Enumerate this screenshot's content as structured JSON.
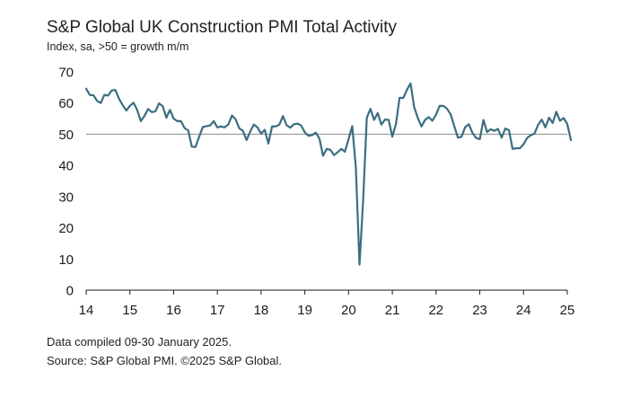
{
  "title": "S&P Global UK Construction PMI Total Activity",
  "subtitle": "Index, sa, >50 = growth m/m",
  "footer": {
    "note": "Data compiled 09-30 January 2025.",
    "source": "Source: S&P Global PMI. ©2025 S&P Global."
  },
  "colors": {
    "line": "#3a6e80",
    "reference": "#8c8c8c",
    "axis": "#1a1a1a"
  },
  "chart_data": {
    "type": "line",
    "title": "S&P Global UK Construction PMI Total Activity",
    "ylabel": "Index, sa, >50 = growth m/m",
    "xlabel": "",
    "ylim": [
      0,
      70
    ],
    "xlim": [
      2014,
      2025.1
    ],
    "yticks": [
      0,
      10,
      20,
      30,
      40,
      50,
      60,
      70
    ],
    "xticks": [
      {
        "value": 2014,
        "label": "14"
      },
      {
        "value": 2015,
        "label": "15"
      },
      {
        "value": 2016,
        "label": "16"
      },
      {
        "value": 2017,
        "label": "17"
      },
      {
        "value": 2018,
        "label": "18"
      },
      {
        "value": 2019,
        "label": "19"
      },
      {
        "value": 2020,
        "label": "20"
      },
      {
        "value": 2021,
        "label": "21"
      },
      {
        "value": 2022,
        "label": "22"
      },
      {
        "value": 2023,
        "label": "23"
      },
      {
        "value": 2024,
        "label": "24"
      },
      {
        "value": 2025,
        "label": "25"
      }
    ],
    "reference_line": 50,
    "grid": false,
    "series": [
      {
        "name": "Total Activity",
        "start": 2014.0,
        "step": 0.0833333,
        "values": [
          64.6,
          62.6,
          62.5,
          60.7,
          60.0,
          62.6,
          62.4,
          64.0,
          64.2,
          61.4,
          59.4,
          57.6,
          59.1,
          60.1,
          57.8,
          54.2,
          55.9,
          58.1,
          57.1,
          57.3,
          59.9,
          59.0,
          55.3,
          57.8,
          55.0,
          54.2,
          54.2,
          52.0,
          51.2,
          46.0,
          45.9,
          49.2,
          52.3,
          52.6,
          52.8,
          54.2,
          52.2,
          52.5,
          52.2,
          53.1,
          56.0,
          54.8,
          51.9,
          51.1,
          48.1,
          50.8,
          53.1,
          52.2,
          50.2,
          51.4,
          47.0,
          52.5,
          52.5,
          53.1,
          55.8,
          52.9,
          52.1,
          53.2,
          53.4,
          52.8,
          50.6,
          49.5,
          49.7,
          50.5,
          48.6,
          43.1,
          45.3,
          45.0,
          43.3,
          44.2,
          45.3,
          44.4,
          48.4,
          52.6,
          39.3,
          8.2,
          28.9,
          55.3,
          58.1,
          54.6,
          56.8,
          53.1,
          54.7,
          54.6,
          49.2,
          53.3,
          61.7,
          61.6,
          64.2,
          66.3,
          58.7,
          55.2,
          52.5,
          54.6,
          55.5,
          54.3,
          56.3,
          59.1,
          59.1,
          58.2,
          56.4,
          52.6,
          48.9,
          49.2,
          52.3,
          53.2,
          50.4,
          48.8,
          48.4,
          54.6,
          50.7,
          51.6,
          51.1,
          51.7,
          48.9,
          51.8,
          51.3,
          45.3,
          45.5,
          45.5,
          46.8,
          48.8,
          49.7,
          50.2,
          53.0,
          54.7,
          52.2,
          55.3,
          53.6,
          57.2,
          54.3,
          55.2,
          53.3,
          48.1
        ]
      }
    ]
  }
}
